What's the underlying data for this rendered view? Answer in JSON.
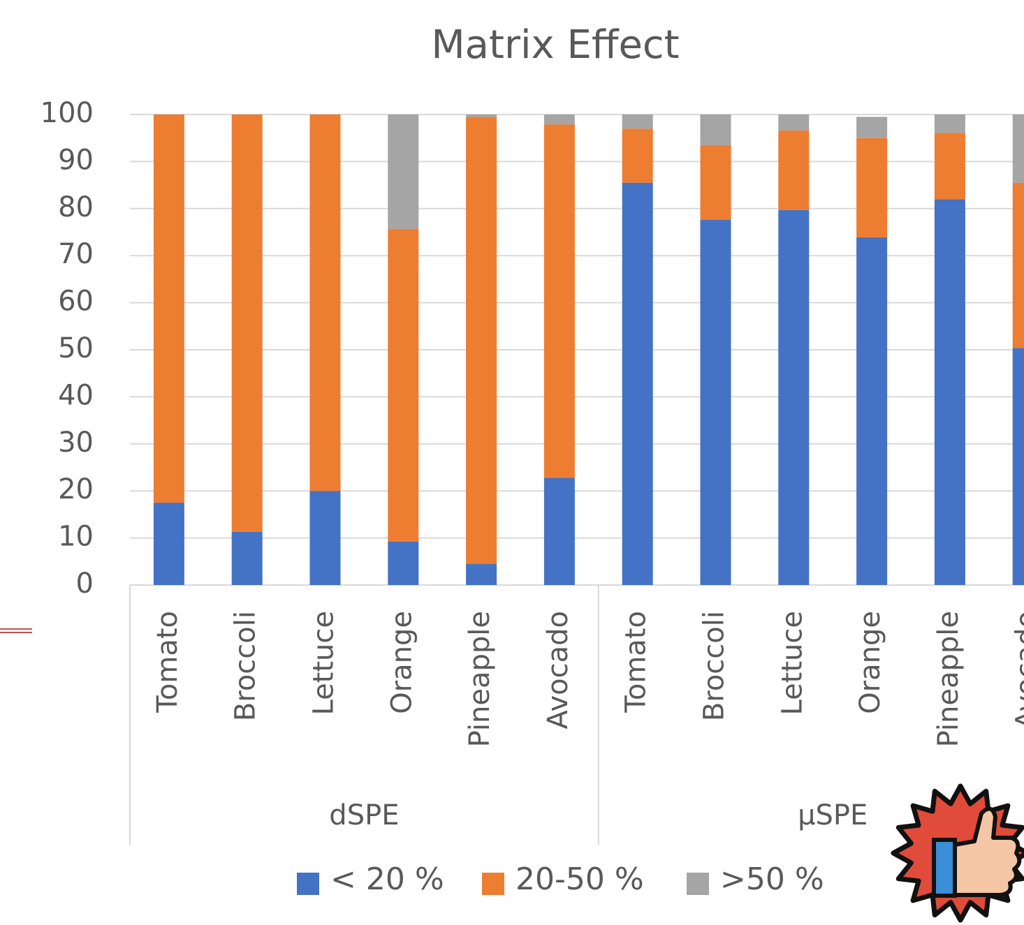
{
  "chart_data": {
    "type": "stacked-bar",
    "title": "Matrix Effect",
    "groups": [
      {
        "name": "dSPE",
        "categories": [
          "Tomato",
          "Broccoli",
          "Lettuce",
          "Orange",
          "Pineapple",
          "Avocado"
        ]
      },
      {
        "name": "μSPE",
        "categories": [
          "Tomato",
          "Broccoli",
          "Lettuce",
          "Orange",
          "Pineapple",
          "Avocado"
        ]
      }
    ],
    "series": [
      {
        "name": "< 20 %",
        "color": "#4472c4",
        "values": [
          17.5,
          11.3,
          20,
          9.2,
          4.5,
          22.8,
          85.5,
          77.6,
          79.7,
          73.9,
          82,
          50.4
        ]
      },
      {
        "name": "20-50 %",
        "color": "#ed7d31",
        "values": [
          82.5,
          88.7,
          80,
          66.5,
          95,
          75.1,
          11.5,
          15.9,
          16.9,
          21.1,
          14.1,
          35.1
        ]
      },
      {
        "name": ">50 %",
        "color": "#a5a5a5",
        "values": [
          0,
          0,
          0,
          24.3,
          0.5,
          2.1,
          3,
          6.5,
          3.4,
          4.5,
          3.9,
          14.5
        ]
      }
    ],
    "ylim": [
      0,
      100
    ],
    "yticks": [
      0,
      10,
      20,
      30,
      40,
      50,
      60,
      70,
      80,
      90,
      100
    ],
    "grid": true,
    "legend": "bottom"
  }
}
